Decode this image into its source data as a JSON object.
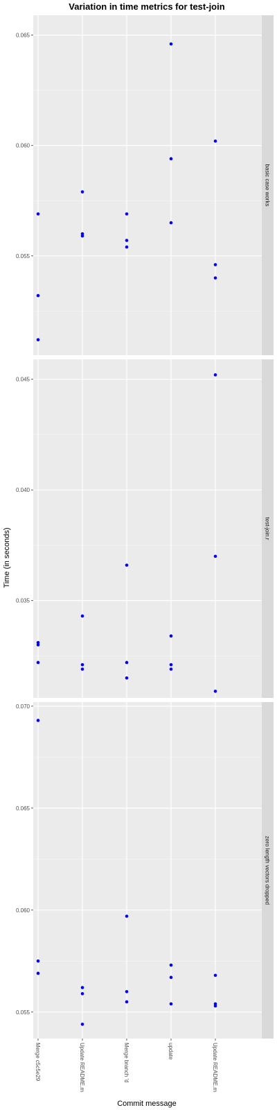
{
  "chart_data": {
    "type": "scatter",
    "title": "Variation in time metrics for test-join",
    "xlabel": "Commit message",
    "ylabel": "Time (in seconds)",
    "categories": [
      "Merge c5c5e29",
      "Update README.m",
      "Merge branch 'd",
      "update",
      "Update README.m"
    ],
    "point_color": "#0000ff",
    "panel_bg": "#ebebeb",
    "strip_bg": "#d9d9d9",
    "grid": true,
    "panels": [
      {
        "label": "basic case works",
        "ylim": [
          0.0505,
          0.0659
        ],
        "ticks": [
          0.055,
          0.06,
          0.065
        ],
        "tick_labels": [
          "0.055",
          "0.060",
          "0.065"
        ],
        "points": [
          {
            "x": 0,
            "y": 0.0569
          },
          {
            "x": 0,
            "y": 0.0532
          },
          {
            "x": 0,
            "y": 0.0512
          },
          {
            "x": 1,
            "y": 0.0579
          },
          {
            "x": 1,
            "y": 0.056
          },
          {
            "x": 1,
            "y": 0.0559
          },
          {
            "x": 2,
            "y": 0.0569
          },
          {
            "x": 2,
            "y": 0.0557
          },
          {
            "x": 2,
            "y": 0.0554
          },
          {
            "x": 3,
            "y": 0.0646
          },
          {
            "x": 3,
            "y": 0.0594
          },
          {
            "x": 3,
            "y": 0.0565
          },
          {
            "x": 4,
            "y": 0.0602
          },
          {
            "x": 4,
            "y": 0.0546
          },
          {
            "x": 4,
            "y": 0.054
          }
        ]
      },
      {
        "label": "test-join.r",
        "ylim": [
          0.0306,
          0.0459
        ],
        "ticks": [
          0.035,
          0.04,
          0.045
        ],
        "tick_labels": [
          "0.035",
          "0.040",
          "0.045"
        ],
        "points": [
          {
            "x": 0,
            "y": 0.0331
          },
          {
            "x": 0,
            "y": 0.033
          },
          {
            "x": 0,
            "y": 0.0322
          },
          {
            "x": 1,
            "y": 0.0343
          },
          {
            "x": 1,
            "y": 0.0321
          },
          {
            "x": 1,
            "y": 0.0319
          },
          {
            "x": 2,
            "y": 0.0366
          },
          {
            "x": 2,
            "y": 0.0322
          },
          {
            "x": 2,
            "y": 0.0315
          },
          {
            "x": 3,
            "y": 0.0334
          },
          {
            "x": 3,
            "y": 0.0321
          },
          {
            "x": 3,
            "y": 0.0319
          },
          {
            "x": 4,
            "y": 0.0452
          },
          {
            "x": 4,
            "y": 0.037
          },
          {
            "x": 4,
            "y": 0.0309
          }
        ]
      },
      {
        "label": "zero length vectors dropped",
        "ylim": [
          0.0537,
          0.0702
        ],
        "ticks": [
          0.055,
          0.06,
          0.065,
          0.07
        ],
        "tick_labels": [
          "0.055",
          "0.060",
          "0.065",
          "0.070"
        ],
        "points": [
          {
            "x": 0,
            "y": 0.0693
          },
          {
            "x": 0,
            "y": 0.0575
          },
          {
            "x": 0,
            "y": 0.0569
          },
          {
            "x": 1,
            "y": 0.0562
          },
          {
            "x": 1,
            "y": 0.0559
          },
          {
            "x": 1,
            "y": 0.0544
          },
          {
            "x": 2,
            "y": 0.0597
          },
          {
            "x": 2,
            "y": 0.056
          },
          {
            "x": 2,
            "y": 0.0555
          },
          {
            "x": 3,
            "y": 0.0573
          },
          {
            "x": 3,
            "y": 0.0567
          },
          {
            "x": 3,
            "y": 0.0554
          },
          {
            "x": 4,
            "y": 0.0568
          },
          {
            "x": 4,
            "y": 0.0554
          },
          {
            "x": 4,
            "y": 0.0553
          }
        ]
      }
    ]
  }
}
